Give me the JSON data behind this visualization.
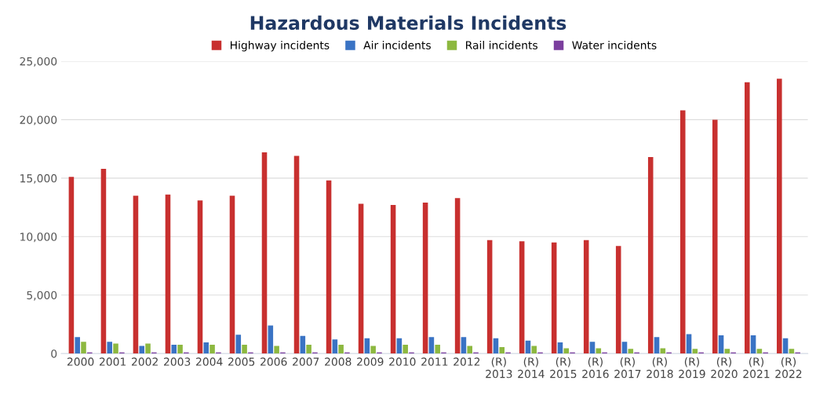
{
  "chart_data": {
    "type": "bar",
    "title": "Hazardous Materials Incidents",
    "categories": [
      "2000",
      "2001",
      "2002",
      "2003",
      "2004",
      "2005",
      "2006",
      "2007",
      "2008",
      "2009",
      "2010",
      "2011",
      "2012",
      "(R)\n2013",
      "(R)\n2014",
      "(R)\n2015",
      "(R)\n2016",
      "(R)\n2017",
      "(R)\n2018",
      "(R)\n2019",
      "(R)\n2020",
      "(R)\n2021",
      "(R)\n2022"
    ],
    "series": [
      {
        "name": "Highway incidents",
        "color": "#c8302f",
        "values": [
          15100,
          15800,
          13500,
          13600,
          13100,
          13500,
          17200,
          16900,
          14800,
          12800,
          12700,
          12900,
          13300,
          9700,
          9600,
          9500,
          9700,
          9200,
          16800,
          20800,
          20000,
          23200,
          23500
        ]
      },
      {
        "name": "Air incidents",
        "color": "#3a73c4",
        "values": [
          1400,
          1000,
          650,
          750,
          950,
          1600,
          2400,
          1500,
          1200,
          1300,
          1300,
          1400,
          1400,
          1300,
          1100,
          950,
          1000,
          1000,
          1400,
          1650,
          1550,
          1550,
          1300
        ]
      },
      {
        "name": "Rail incidents",
        "color": "#8db840",
        "values": [
          1000,
          850,
          850,
          750,
          750,
          750,
          650,
          750,
          750,
          650,
          750,
          750,
          650,
          550,
          650,
          450,
          450,
          400,
          450,
          400,
          400,
          400,
          400
        ]
      },
      {
        "name": "Water incidents",
        "color": "#7b3f9e",
        "values": [
          100,
          100,
          100,
          100,
          100,
          100,
          100,
          100,
          100,
          100,
          100,
          100,
          100,
          100,
          100,
          100,
          100,
          100,
          100,
          100,
          100,
          100,
          100
        ]
      }
    ],
    "ylim": [
      0,
      25000
    ],
    "yticks": [
      {
        "value": 0,
        "label": "0"
      },
      {
        "value": 5000,
        "label": "5,000"
      },
      {
        "value": 10000,
        "label": "10,000"
      },
      {
        "value": 15000,
        "label": "15,000"
      },
      {
        "value": 20000,
        "label": "20,000"
      },
      {
        "value": 25000,
        "label": "25,000"
      }
    ],
    "grid": "y",
    "legend": "top"
  }
}
